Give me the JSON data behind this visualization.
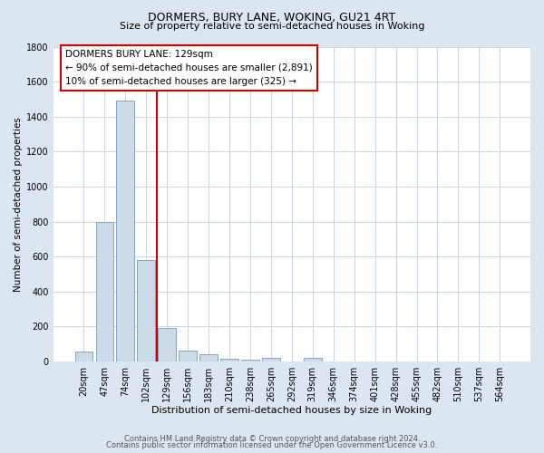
{
  "title": "DORMERS, BURY LANE, WOKING, GU21 4RT",
  "subtitle": "Size of property relative to semi-detached houses in Woking",
  "xlabel": "Distribution of semi-detached houses by size in Woking",
  "ylabel": "Number of semi-detached properties",
  "bin_labels": [
    "20sqm",
    "47sqm",
    "74sqm",
    "102sqm",
    "129sqm",
    "156sqm",
    "183sqm",
    "210sqm",
    "238sqm",
    "265sqm",
    "292sqm",
    "319sqm",
    "346sqm",
    "374sqm",
    "401sqm",
    "428sqm",
    "455sqm",
    "482sqm",
    "510sqm",
    "537sqm",
    "564sqm"
  ],
  "bar_heights": [
    55,
    800,
    1490,
    580,
    193,
    65,
    40,
    15,
    12,
    20,
    0,
    20,
    0,
    0,
    0,
    0,
    0,
    0,
    0,
    0,
    0
  ],
  "bar_color": "#ccd9e8",
  "bar_edge_color": "#7799bb",
  "vline_color": "#cc0000",
  "annotation_text_line1": "DORMERS BURY LANE: 129sqm",
  "annotation_text_line2": "← 90% of semi-detached houses are smaller (2,891)",
  "annotation_text_line3": "10% of semi-detached houses are larger (325) →",
  "annotation_box_facecolor": "#ffffff",
  "annotation_box_edgecolor": "#cc0000",
  "ylim": [
    0,
    1800
  ],
  "yticks": [
    0,
    200,
    400,
    600,
    800,
    1000,
    1200,
    1400,
    1600,
    1800
  ],
  "footer_line1": "Contains HM Land Registry data © Crown copyright and database right 2024.",
  "footer_line2": "Contains public sector information licensed under the Open Government Licence v3.0.",
  "fig_bg_color": "#dce6f0",
  "plot_bg_color": "#ffffff",
  "grid_color": "#c8d4e0",
  "vline_index": 4,
  "title_fontsize": 9,
  "subtitle_fontsize": 8,
  "xlabel_fontsize": 8,
  "ylabel_fontsize": 7.5,
  "tick_fontsize": 7,
  "annotation_fontsize": 7.5,
  "footer_fontsize": 6
}
